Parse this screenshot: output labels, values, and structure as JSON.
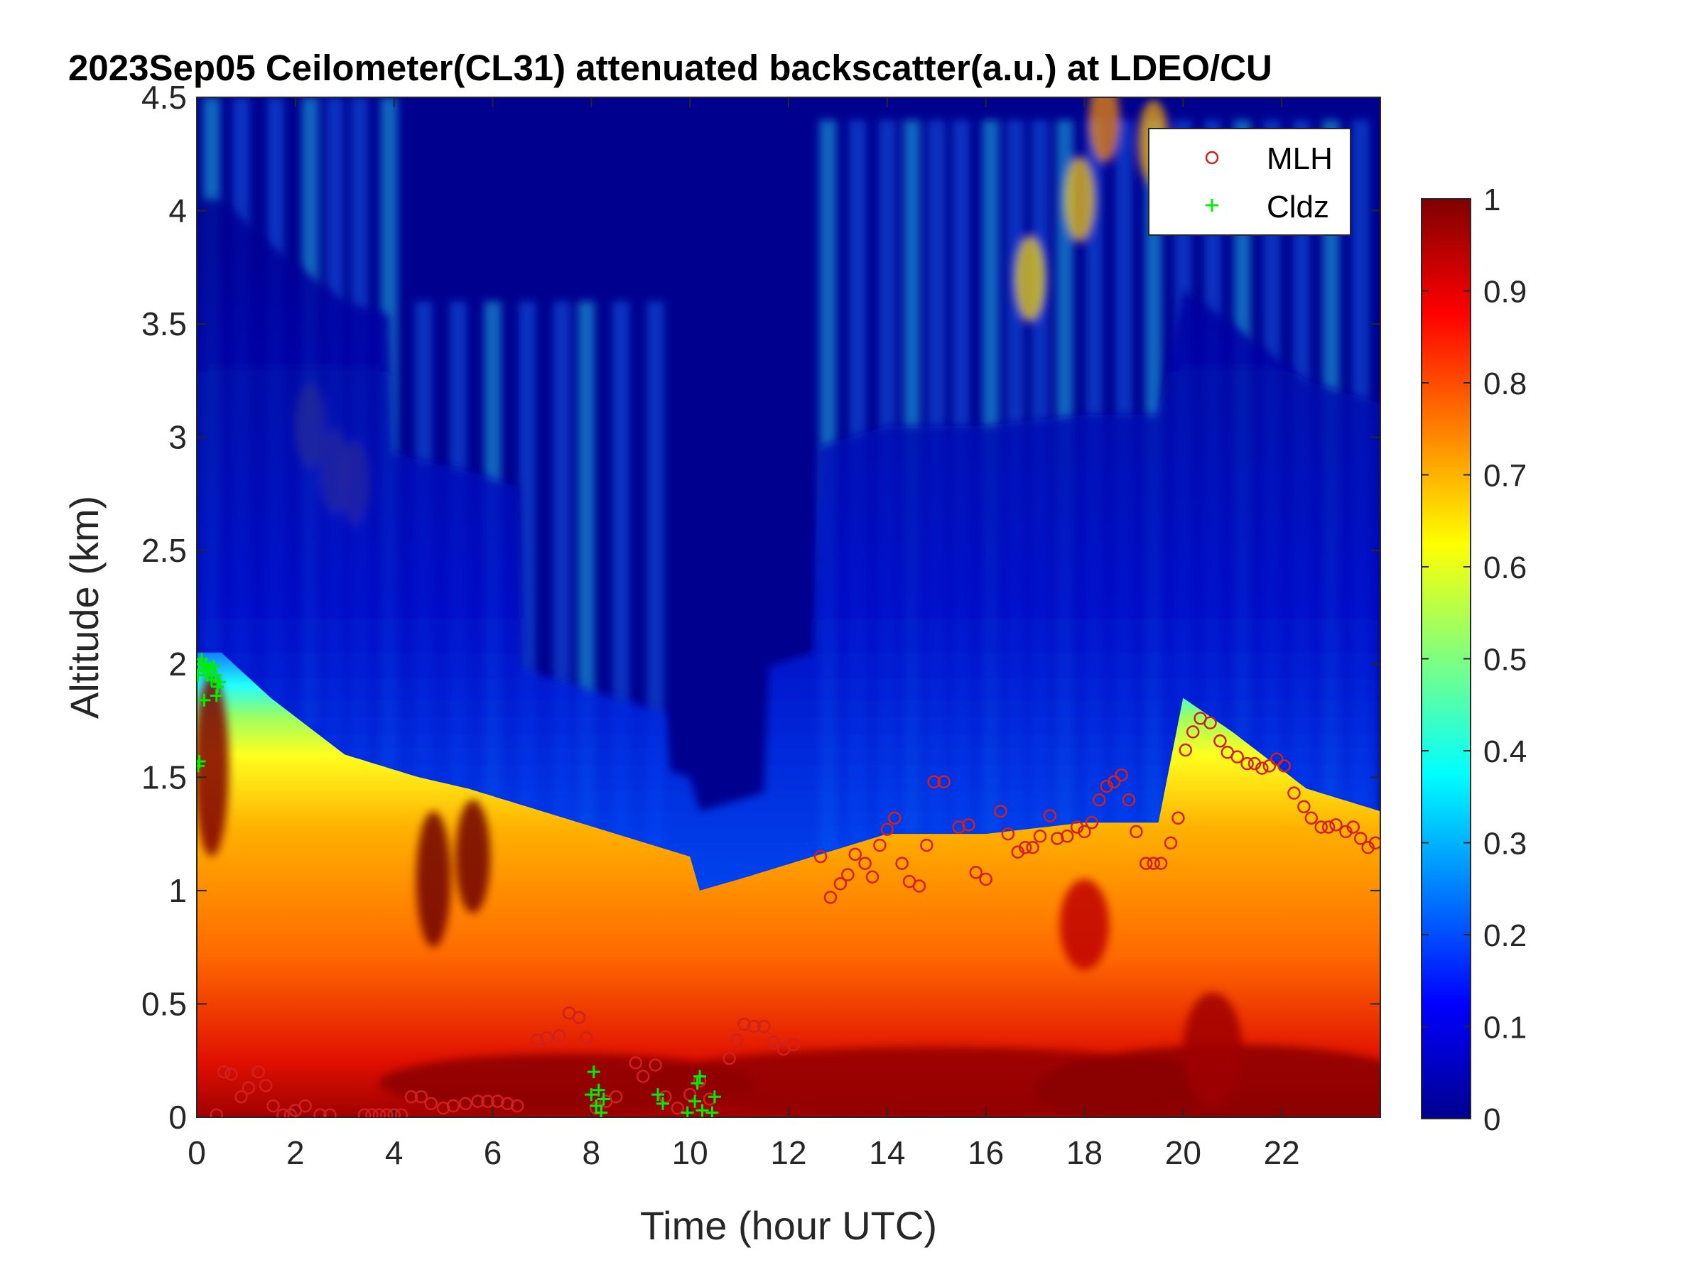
{
  "chart_data": {
    "type": "heatmap",
    "title": "2023Sep05 Ceilometer(CL31) attenuated backscatter(a.u.) at LDEO/CU",
    "xlabel": "Time (hour UTC)",
    "ylabel": "Altitude (km)",
    "xlim": [
      0,
      24
    ],
    "ylim": [
      0,
      4.5
    ],
    "xticks": [
      0,
      2,
      4,
      6,
      8,
      10,
      12,
      14,
      16,
      18,
      20,
      22
    ],
    "yticks": [
      0,
      0.5,
      1,
      1.5,
      2,
      2.5,
      3,
      3.5,
      4,
      4.5
    ],
    "colorbar": {
      "colormap": "jet",
      "range": [
        0,
        1
      ],
      "ticks": [
        0,
        0.1,
        0.2,
        0.3,
        0.4,
        0.5,
        0.6,
        0.7,
        0.8,
        0.9,
        1
      ]
    },
    "legend": {
      "placement": "top-right",
      "entries": [
        {
          "name": "MLH",
          "marker": "circle",
          "color": "#d02020"
        },
        {
          "name": "Cldz",
          "marker": "plus",
          "color": "#00ee00"
        }
      ]
    },
    "backscatter_profile": {
      "description_hours": [
        0,
        0.5,
        1.5,
        3,
        4.5,
        5.5,
        7,
        8.5,
        10,
        10.2,
        11,
        12.5,
        14,
        16,
        18,
        19.5,
        20,
        21,
        22.5,
        24
      ],
      "aerosol_top_km": [
        2.05,
        2.05,
        1.85,
        1.6,
        1.5,
        1.45,
        1.35,
        1.25,
        1.15,
        1.0,
        1.05,
        1.15,
        1.25,
        1.25,
        1.3,
        1.3,
        1.85,
        1.7,
        1.45,
        1.35
      ]
    },
    "series": [
      {
        "name": "MLH",
        "points": [
          [
            0.4,
            0.01
          ],
          [
            0.55,
            0.2
          ],
          [
            0.7,
            0.19
          ],
          [
            0.9,
            0.09
          ],
          [
            1.05,
            0.13
          ],
          [
            1.25,
            0.2
          ],
          [
            1.4,
            0.14
          ],
          [
            1.55,
            0.05
          ],
          [
            1.75,
            0.01
          ],
          [
            1.9,
            0.01
          ],
          [
            2.0,
            0.03
          ],
          [
            2.2,
            0.05
          ],
          [
            2.5,
            0.01
          ],
          [
            2.7,
            0.01
          ],
          [
            3.4,
            0.01
          ],
          [
            3.55,
            0.01
          ],
          [
            3.7,
            0.01
          ],
          [
            3.85,
            0.01
          ],
          [
            4.0,
            0.01
          ],
          [
            4.15,
            0.01
          ],
          [
            4.35,
            0.09
          ],
          [
            4.55,
            0.09
          ],
          [
            4.75,
            0.06
          ],
          [
            5.0,
            0.04
          ],
          [
            5.2,
            0.05
          ],
          [
            5.45,
            0.06
          ],
          [
            5.7,
            0.07
          ],
          [
            5.9,
            0.07
          ],
          [
            6.1,
            0.07
          ],
          [
            6.3,
            0.06
          ],
          [
            6.5,
            0.05
          ],
          [
            6.9,
            0.34
          ],
          [
            7.1,
            0.35
          ],
          [
            7.35,
            0.36
          ],
          [
            7.55,
            0.46
          ],
          [
            7.75,
            0.44
          ],
          [
            7.9,
            0.35
          ],
          [
            8.1,
            0.04
          ],
          [
            8.3,
            0.07
          ],
          [
            8.5,
            0.09
          ],
          [
            8.9,
            0.24
          ],
          [
            9.05,
            0.18
          ],
          [
            9.3,
            0.23
          ],
          [
            9.5,
            0.09
          ],
          [
            9.75,
            0.04
          ],
          [
            10.0,
            0.1
          ],
          [
            10.2,
            0.16
          ],
          [
            10.4,
            0.08
          ],
          [
            10.8,
            0.26
          ],
          [
            10.95,
            0.34
          ],
          [
            11.1,
            0.41
          ],
          [
            11.3,
            0.4
          ],
          [
            11.5,
            0.4
          ],
          [
            11.7,
            0.33
          ],
          [
            11.9,
            0.3
          ],
          [
            12.1,
            0.32
          ],
          [
            12.65,
            1.15
          ],
          [
            12.85,
            0.97
          ],
          [
            13.05,
            1.03
          ],
          [
            13.2,
            1.07
          ],
          [
            13.35,
            1.16
          ],
          [
            13.55,
            1.12
          ],
          [
            13.7,
            1.06
          ],
          [
            13.85,
            1.2
          ],
          [
            14.0,
            1.27
          ],
          [
            14.15,
            1.32
          ],
          [
            14.3,
            1.12
          ],
          [
            14.45,
            1.04
          ],
          [
            14.65,
            1.02
          ],
          [
            14.8,
            1.2
          ],
          [
            14.95,
            1.48
          ],
          [
            15.15,
            1.48
          ],
          [
            15.45,
            1.28
          ],
          [
            15.65,
            1.29
          ],
          [
            15.8,
            1.08
          ],
          [
            16.0,
            1.05
          ],
          [
            16.3,
            1.35
          ],
          [
            16.45,
            1.25
          ],
          [
            16.65,
            1.17
          ],
          [
            16.8,
            1.19
          ],
          [
            16.95,
            1.19
          ],
          [
            17.1,
            1.24
          ],
          [
            17.3,
            1.33
          ],
          [
            17.45,
            1.23
          ],
          [
            17.65,
            1.24
          ],
          [
            17.85,
            1.28
          ],
          [
            18.0,
            1.26
          ],
          [
            18.15,
            1.3
          ],
          [
            18.3,
            1.4
          ],
          [
            18.45,
            1.46
          ],
          [
            18.6,
            1.48
          ],
          [
            18.75,
            1.51
          ],
          [
            18.9,
            1.4
          ],
          [
            19.05,
            1.26
          ],
          [
            19.25,
            1.12
          ],
          [
            19.4,
            1.12
          ],
          [
            19.55,
            1.12
          ],
          [
            19.75,
            1.21
          ],
          [
            19.9,
            1.32
          ],
          [
            20.05,
            1.62
          ],
          [
            20.2,
            1.7
          ],
          [
            20.35,
            1.76
          ],
          [
            20.55,
            1.74
          ],
          [
            20.75,
            1.66
          ],
          [
            20.9,
            1.61
          ],
          [
            21.1,
            1.59
          ],
          [
            21.3,
            1.56
          ],
          [
            21.45,
            1.56
          ],
          [
            21.6,
            1.54
          ],
          [
            21.75,
            1.55
          ],
          [
            21.9,
            1.58
          ],
          [
            22.05,
            1.55
          ],
          [
            22.25,
            1.43
          ],
          [
            22.45,
            1.37
          ],
          [
            22.6,
            1.32
          ],
          [
            22.8,
            1.28
          ],
          [
            22.95,
            1.28
          ],
          [
            23.1,
            1.29
          ],
          [
            23.3,
            1.26
          ],
          [
            23.45,
            1.28
          ],
          [
            23.6,
            1.23
          ],
          [
            23.75,
            1.19
          ],
          [
            23.9,
            1.21
          ]
        ]
      },
      {
        "name": "Cldz",
        "points": [
          [
            0.03,
            1.55
          ],
          [
            0.05,
            1.57
          ],
          [
            0.02,
            1.95
          ],
          [
            0.06,
            2.0
          ],
          [
            0.1,
            2.02
          ],
          [
            0.14,
            1.97
          ],
          [
            0.18,
            2.0
          ],
          [
            0.22,
            1.95
          ],
          [
            0.26,
            1.98
          ],
          [
            0.3,
            1.93
          ],
          [
            0.34,
            1.99
          ],
          [
            0.38,
            1.95
          ],
          [
            0.42,
            1.9
          ],
          [
            0.46,
            1.92
          ],
          [
            0.15,
            1.84
          ],
          [
            0.4,
            1.86
          ],
          [
            8.0,
            0.1
          ],
          [
            8.05,
            0.2
          ],
          [
            8.1,
            0.05
          ],
          [
            8.15,
            0.12
          ],
          [
            8.2,
            0.02
          ],
          [
            8.25,
            0.08
          ],
          [
            9.35,
            0.1
          ],
          [
            9.45,
            0.06
          ],
          [
            9.95,
            0.02
          ],
          [
            10.1,
            0.07
          ],
          [
            10.15,
            0.15
          ],
          [
            10.2,
            0.18
          ],
          [
            10.25,
            0.03
          ],
          [
            10.45,
            0.02
          ],
          [
            10.5,
            0.09
          ]
        ]
      }
    ]
  }
}
